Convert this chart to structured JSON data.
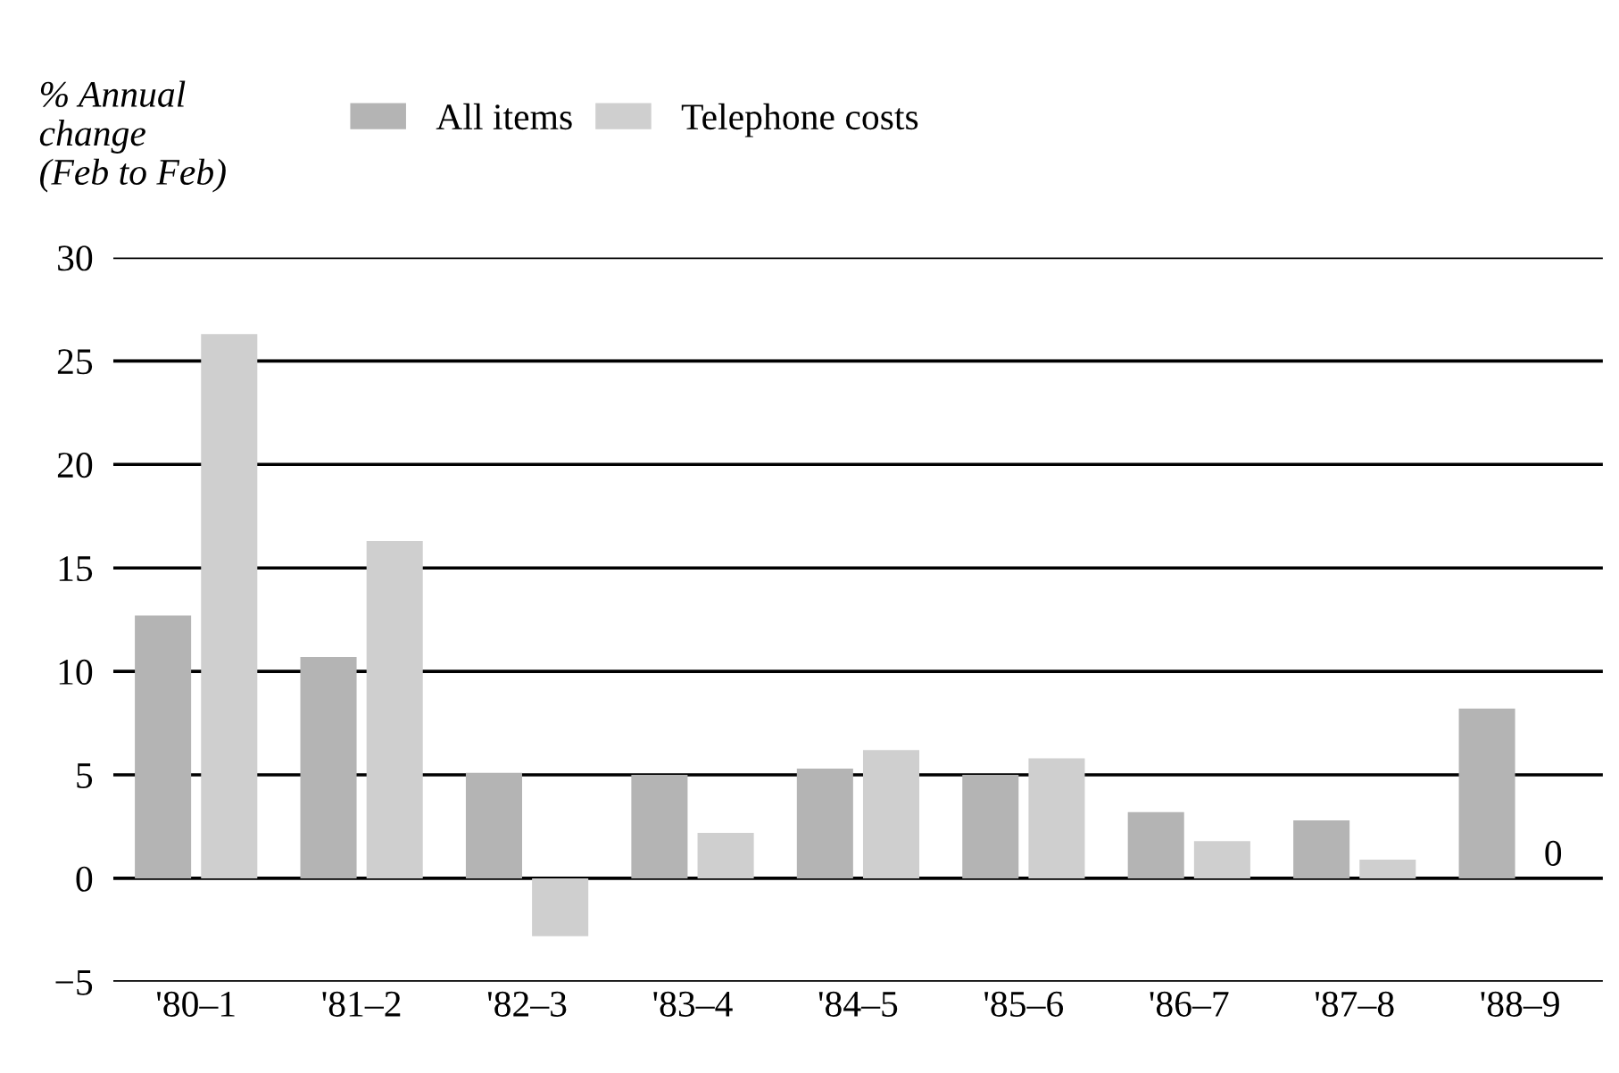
{
  "chart_data": {
    "type": "bar",
    "ylabel": "% Annual\nchange\n(Feb to Feb)",
    "categories": [
      "'80–1",
      "'81–2",
      "'82–3",
      "'83–4",
      "'84–5",
      "'85–6",
      "'86–7",
      "'87–8",
      "'88–9"
    ],
    "series": [
      {
        "name": "All items",
        "color": "#b4b4b4",
        "values": [
          12.7,
          10.7,
          5.1,
          5.0,
          5.3,
          5.0,
          3.2,
          2.8,
          8.2
        ]
      },
      {
        "name": "Telephone costs",
        "color": "#cfcfcf",
        "values": [
          26.3,
          16.3,
          -2.8,
          2.2,
          6.2,
          5.8,
          1.8,
          0.9,
          0
        ],
        "value_labels": [
          null,
          null,
          null,
          null,
          null,
          null,
          null,
          null,
          "0"
        ]
      }
    ],
    "ylim": [
      -5,
      30
    ],
    "yticks": [
      {
        "value": -5,
        "label": "−5"
      },
      0,
      5,
      10,
      15,
      20,
      25,
      30
    ],
    "grid": "y",
    "legend": "top"
  }
}
